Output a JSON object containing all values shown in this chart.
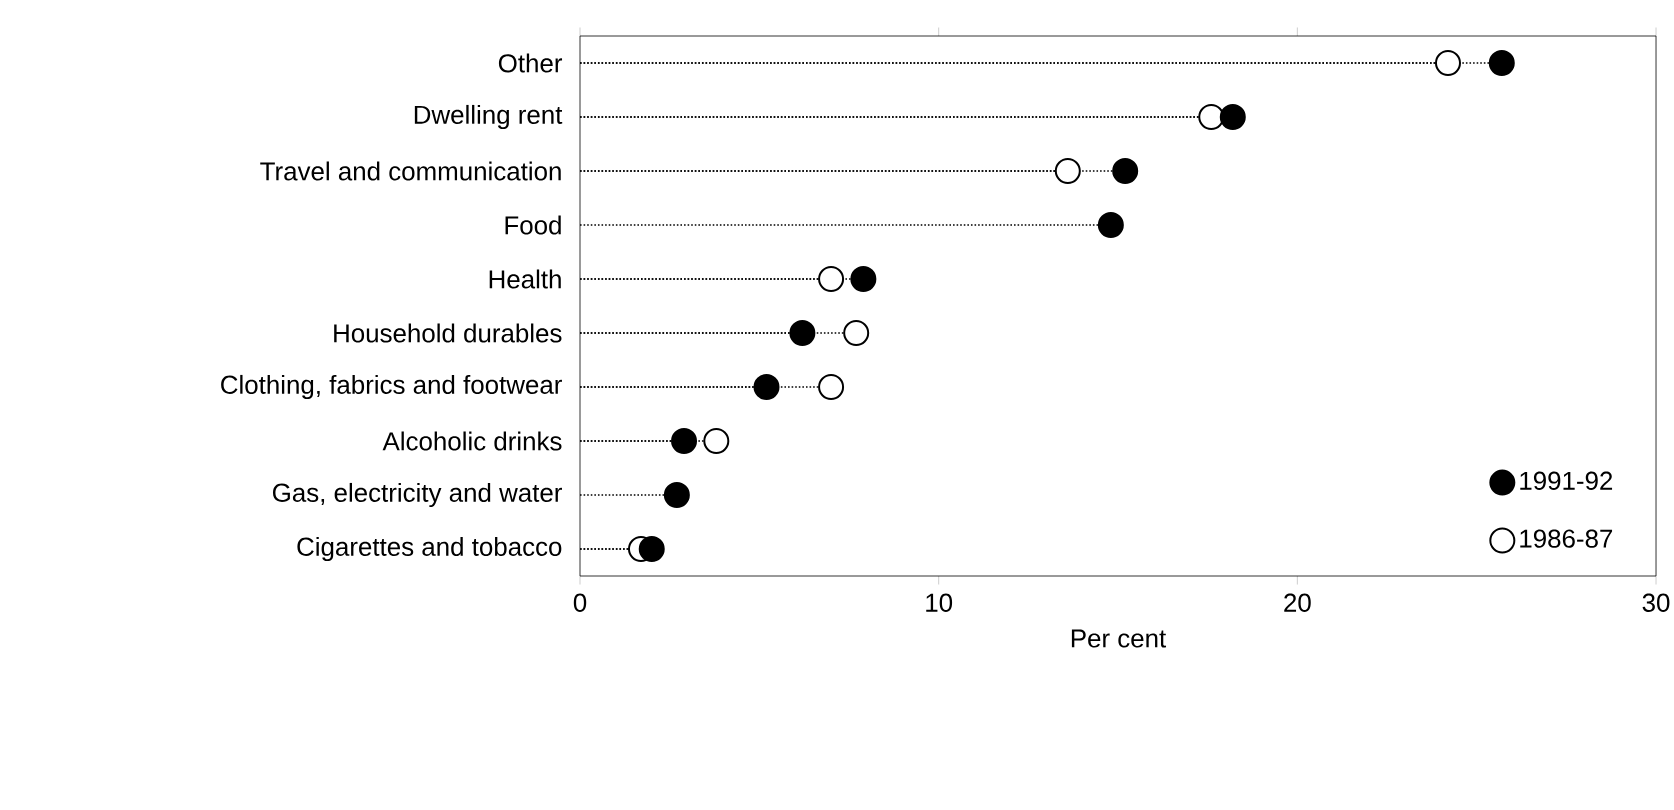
{
  "chart_data": {
    "type": "lollipop",
    "orientation": "horizontal",
    "xlabel": "Per cent",
    "categories": [
      "Other",
      "Dwelling rent",
      "Travel and communication",
      "Food",
      "Health",
      "Household durables",
      "Clothing, fabrics and footwear",
      "Alcoholic drinks",
      "Gas, electricity and water",
      "Cigarettes and tobacco"
    ],
    "series": [
      {
        "name": "1991-92",
        "color": "#000000",
        "values": [
          25.7,
          18.2,
          15.2,
          14.8,
          7.9,
          6.2,
          5.2,
          2.9,
          2.7,
          2.0
        ]
      },
      {
        "name": "1986-87",
        "color": "#ffffff",
        "values": [
          24.2,
          17.6,
          13.6,
          null,
          7.0,
          7.7,
          7.0,
          3.8,
          null,
          1.7
        ]
      }
    ],
    "xlim": [
      0,
      30
    ],
    "xticks": [
      0,
      10,
      20,
      30
    ],
    "legend": "bottom right",
    "line_style": "dotted"
  }
}
